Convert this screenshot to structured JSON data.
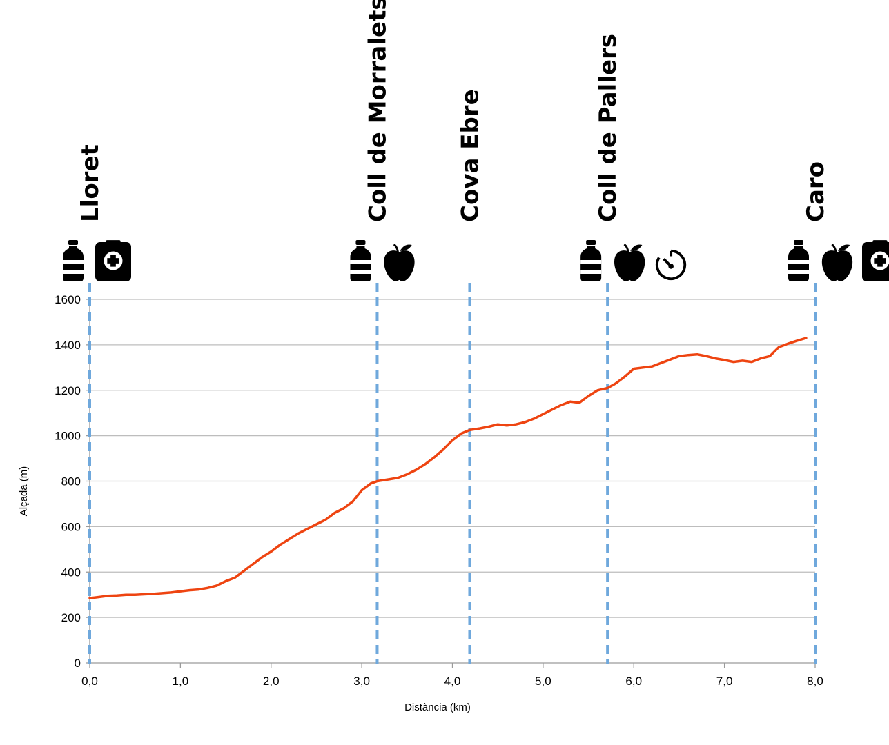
{
  "chart_data": {
    "type": "line",
    "xlabel": "Distància (km)",
    "ylabel": "Alçada (m)",
    "xlim": [
      0,
      8
    ],
    "ylim": [
      0,
      1600
    ],
    "x_ticks": [
      "0,0",
      "1,0",
      "2,0",
      "3,0",
      "4,0",
      "5,0",
      "6,0",
      "7,0",
      "8,0"
    ],
    "y_ticks": [
      "0",
      "200",
      "400",
      "600",
      "800",
      "1000",
      "1200",
      "1400",
      "1600"
    ],
    "grid": "horizontal",
    "line_color": "#ee4411",
    "marker_color": "#6fa8dc",
    "series": [
      {
        "x": [
          0.0,
          0.1,
          0.2,
          0.3,
          0.4,
          0.5,
          0.6,
          0.7,
          0.8,
          0.9,
          1.0,
          1.1,
          1.2,
          1.3,
          1.4,
          1.5,
          1.6,
          1.7,
          1.8,
          1.9,
          2.0,
          2.1,
          2.2,
          2.3,
          2.4,
          2.5,
          2.6,
          2.7,
          2.8,
          2.9,
          3.0,
          3.1,
          3.17,
          3.3,
          3.4,
          3.5,
          3.6,
          3.7,
          3.8,
          3.9,
          4.0,
          4.1,
          4.19,
          4.3,
          4.4,
          4.5,
          4.6,
          4.7,
          4.8,
          4.9,
          5.0,
          5.1,
          5.2,
          5.3,
          5.4,
          5.5,
          5.6,
          5.71,
          5.8,
          5.9,
          6.0,
          6.1,
          6.2,
          6.3,
          6.4,
          6.5,
          6.6,
          6.7,
          6.8,
          6.9,
          7.0,
          7.1,
          7.2,
          7.3,
          7.4,
          7.5,
          7.6,
          7.7,
          7.8,
          7.9
        ],
        "y": [
          285,
          290,
          295,
          297,
          300,
          300,
          302,
          304,
          307,
          310,
          315,
          320,
          323,
          330,
          340,
          360,
          375,
          405,
          435,
          465,
          490,
          520,
          545,
          570,
          590,
          610,
          630,
          660,
          680,
          710,
          760,
          790,
          800,
          808,
          815,
          830,
          850,
          875,
          905,
          940,
          980,
          1010,
          1025,
          1032,
          1040,
          1050,
          1045,
          1050,
          1060,
          1075,
          1095,
          1115,
          1135,
          1150,
          1145,
          1175,
          1200,
          1210,
          1230,
          1260,
          1295,
          1300,
          1305,
          1320,
          1335,
          1350,
          1355,
          1358,
          1350,
          1340,
          1333,
          1325,
          1330,
          1325,
          1340,
          1350,
          1390,
          1405,
          1418,
          1430
        ]
      }
    ],
    "waypoints": [
      {
        "name": "Lloret",
        "km": 0.0,
        "icons": [
          "water-bottle-icon",
          "first-aid-icon"
        ]
      },
      {
        "name": "Coll de Morralets",
        "km": 3.17,
        "icons": [
          "water-bottle-icon",
          "apple-icon"
        ]
      },
      {
        "name": "Cova Ebre",
        "km": 4.19,
        "icons": []
      },
      {
        "name": "Coll de Pallers",
        "km": 5.71,
        "icons": [
          "water-bottle-icon",
          "apple-icon",
          "stopwatch-icon"
        ]
      },
      {
        "name": "Caro",
        "km": 8.0,
        "icons": [
          "water-bottle-icon",
          "apple-icon",
          "first-aid-icon"
        ]
      }
    ]
  }
}
